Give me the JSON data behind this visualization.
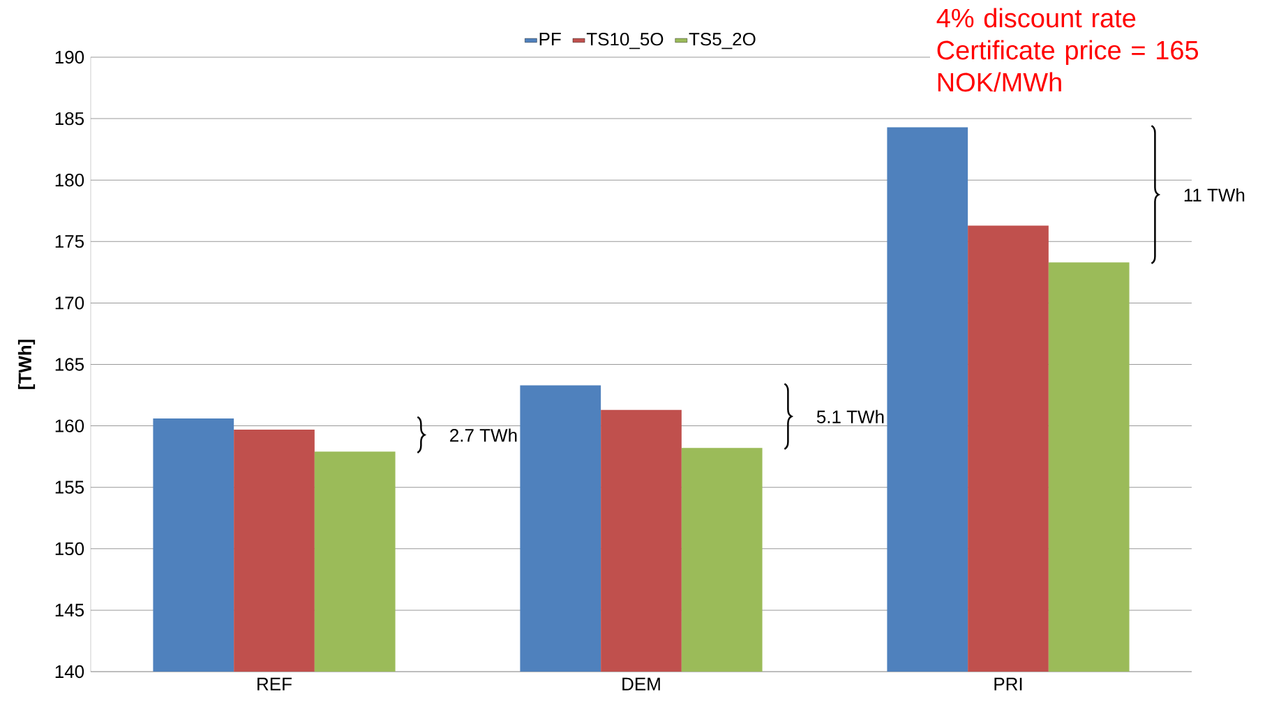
{
  "chart_data": {
    "type": "bar",
    "ylabel": "[TWh]",
    "categories": [
      "REF",
      "DEM",
      "PRI"
    ],
    "series": [
      {
        "name": "PF",
        "color": "#4f81bd",
        "values": [
          160.6,
          163.3,
          184.3
        ]
      },
      {
        "name": "TS10_5O",
        "color": "#c0504d",
        "values": [
          159.7,
          161.3,
          176.3
        ]
      },
      {
        "name": "TS5_2O",
        "color": "#9bbb59",
        "values": [
          157.9,
          158.2,
          173.3
        ]
      }
    ],
    "ylim": [
      140,
      190
    ],
    "yticks": [
      140,
      145,
      150,
      155,
      160,
      165,
      170,
      175,
      180,
      185,
      190
    ],
    "grid": "y",
    "legend": "top",
    "annotations": [
      "4% discount rate Certificate price = 165 NOK/MWh",
      "2.7 TWh",
      "5.1 TWh",
      "11 TWh"
    ]
  }
}
